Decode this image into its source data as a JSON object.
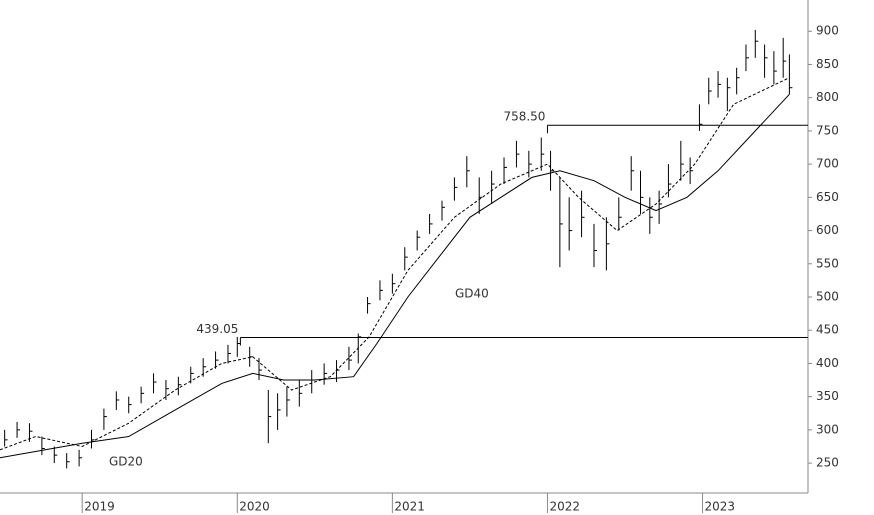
{
  "chart_data": {
    "type": "ohlc",
    "x": [
      2018.5,
      2018.58,
      2018.66,
      2018.74,
      2018.82,
      2018.9,
      2018.98,
      2019.06,
      2019.14,
      2019.22,
      2019.3,
      2019.38,
      2019.46,
      2019.54,
      2019.62,
      2019.7,
      2019.78,
      2019.86,
      2019.94,
      2020.0,
      2020.08,
      2020.14,
      2020.2,
      2020.26,
      2020.32,
      2020.4,
      2020.48,
      2020.56,
      2020.64,
      2020.72,
      2020.78,
      2020.84,
      2020.92,
      2021.0,
      2021.08,
      2021.16,
      2021.24,
      2021.32,
      2021.4,
      2021.48,
      2021.56,
      2021.64,
      2021.72,
      2021.8,
      2021.88,
      2021.96,
      2022.02,
      2022.08,
      2022.14,
      2022.22,
      2022.3,
      2022.38,
      2022.46,
      2022.54,
      2022.6,
      2022.66,
      2022.72,
      2022.78,
      2022.86,
      2022.92,
      2022.98,
      2023.04,
      2023.1,
      2023.16,
      2023.22,
      2023.28,
      2023.34,
      2023.4,
      2023.46,
      2023.52,
      2023.56
    ],
    "high": [
      300,
      312,
      310,
      290,
      275,
      265,
      270,
      300,
      332,
      358,
      350,
      365,
      385,
      375,
      380,
      395,
      408,
      418,
      428,
      440,
      425,
      408,
      360,
      355,
      365,
      375,
      390,
      400,
      405,
      425,
      445,
      500,
      525,
      535,
      575,
      600,
      625,
      645,
      680,
      712,
      680,
      690,
      710,
      735,
      720,
      740,
      720,
      680,
      650,
      660,
      610,
      620,
      650,
      712,
      690,
      650,
      660,
      700,
      735,
      710,
      790,
      830,
      840,
      830,
      845,
      880,
      902,
      880,
      870,
      890,
      865
    ],
    "low": [
      275,
      288,
      282,
      262,
      250,
      242,
      245,
      272,
      300,
      330,
      325,
      340,
      355,
      345,
      352,
      370,
      380,
      392,
      400,
      410,
      395,
      375,
      280,
      300,
      320,
      335,
      355,
      368,
      372,
      390,
      400,
      475,
      495,
      505,
      540,
      570,
      595,
      615,
      645,
      665,
      625,
      640,
      670,
      695,
      680,
      690,
      660,
      545,
      570,
      590,
      545,
      540,
      600,
      660,
      625,
      595,
      610,
      650,
      675,
      670,
      750,
      790,
      800,
      780,
      805,
      840,
      860,
      830,
      820,
      830,
      805
    ],
    "close": [
      285,
      300,
      298,
      272,
      262,
      252,
      258,
      285,
      320,
      345,
      338,
      355,
      372,
      362,
      368,
      385,
      395,
      405,
      415,
      430,
      410,
      390,
      320,
      330,
      345,
      355,
      375,
      385,
      390,
      405,
      440,
      490,
      510,
      520,
      560,
      590,
      610,
      635,
      665,
      690,
      650,
      670,
      695,
      715,
      700,
      715,
      690,
      610,
      600,
      620,
      570,
      580,
      620,
      690,
      650,
      620,
      640,
      670,
      700,
      690,
      760,
      810,
      820,
      815,
      830,
      860,
      885,
      860,
      840,
      855,
      815
    ],
    "series": [
      {
        "name": "GD20",
        "dash": true,
        "x": [
          2018.47,
          2018.7,
          2019.0,
          2019.3,
          2019.6,
          2019.9,
          2020.1,
          2020.35,
          2020.6,
          2020.85,
          2021.1,
          2021.4,
          2021.7,
          2022.0,
          2022.2,
          2022.45,
          2022.7,
          2022.95,
          2023.2,
          2023.56
        ],
        "values": [
          270,
          290,
          275,
          310,
          360,
          400,
          410,
          360,
          380,
          440,
          540,
          620,
          670,
          700,
          650,
          600,
          640,
          700,
          790,
          830
        ]
      },
      {
        "name": "GD40",
        "dash": false,
        "x": [
          2018.47,
          2019.0,
          2019.3,
          2019.6,
          2019.9,
          2020.1,
          2020.3,
          2020.5,
          2020.75,
          2020.9,
          2021.1,
          2021.3,
          2021.5,
          2021.7,
          2021.9,
          2022.08,
          2022.3,
          2022.5,
          2022.7,
          2022.9,
          2023.1,
          2023.3,
          2023.56
        ],
        "values": [
          258,
          280,
          290,
          330,
          370,
          385,
          375,
          375,
          380,
          430,
          500,
          560,
          620,
          650,
          680,
          690,
          675,
          650,
          630,
          650,
          690,
          740,
          805
        ]
      }
    ],
    "levels": [
      {
        "value": 439.05,
        "x": 2020.02
      },
      {
        "value": 758.5,
        "label": "758.50",
        "x": 2022.0
      }
    ],
    "xlim": [
      2018.47,
      2023.68
    ],
    "xticks": [
      2019,
      2020,
      2021,
      2022,
      2023
    ],
    "ylim": [
      205,
      947
    ],
    "yticks": [
      250,
      300,
      350,
      400,
      450,
      500,
      550,
      600,
      650,
      700,
      750,
      800,
      850,
      900
    ]
  }
}
